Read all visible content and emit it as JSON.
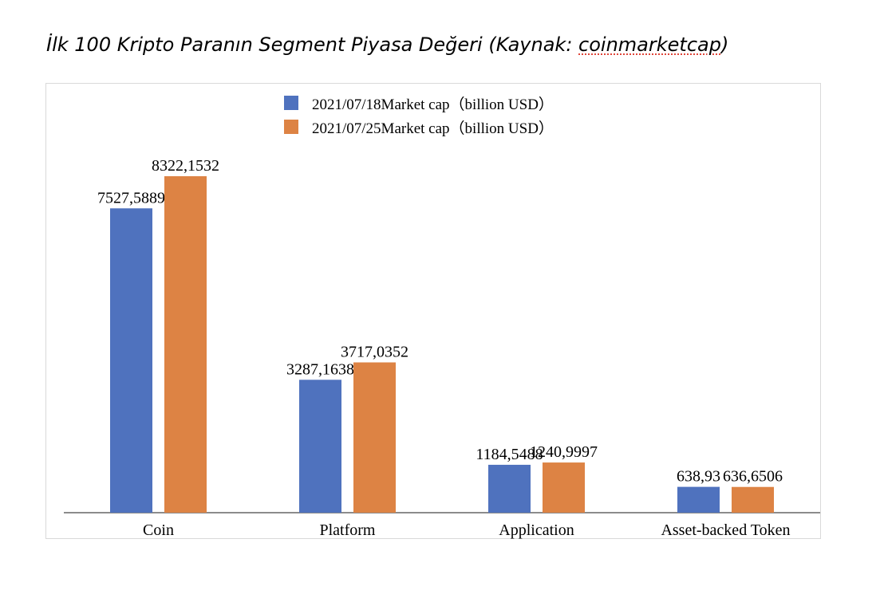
{
  "page": {
    "title_main": "İlk 100 Kripto Paranın Segment Piyasa Değeri (Kaynak: ",
    "title_source": "coinmarketcap",
    "title_end": ")"
  },
  "chart_data": {
    "type": "bar",
    "title": "",
    "xlabel": "",
    "ylabel": "",
    "ylim": [
      0,
      9000
    ],
    "grid": false,
    "legend_position": "top",
    "categories": [
      "Coin",
      "Platform",
      "Application",
      "Asset-backed Token"
    ],
    "series": [
      {
        "name": "2021/07/18Market cap（billion USD）",
        "color": "#4f72be",
        "values": [
          7527.5889,
          3287.1638,
          1184.5488,
          638.93
        ],
        "labels": [
          "7527,5889",
          "3287,1638",
          "1184,5488",
          "638,93"
        ]
      },
      {
        "name": "2021/07/25Market cap（billion USD）",
        "color": "#dd8344",
        "values": [
          8322.1532,
          3717.0352,
          1240.9997,
          636.6506
        ],
        "labels": [
          "8322,1532",
          "3717,0352",
          "1240,9997",
          "636,6506"
        ]
      }
    ]
  }
}
